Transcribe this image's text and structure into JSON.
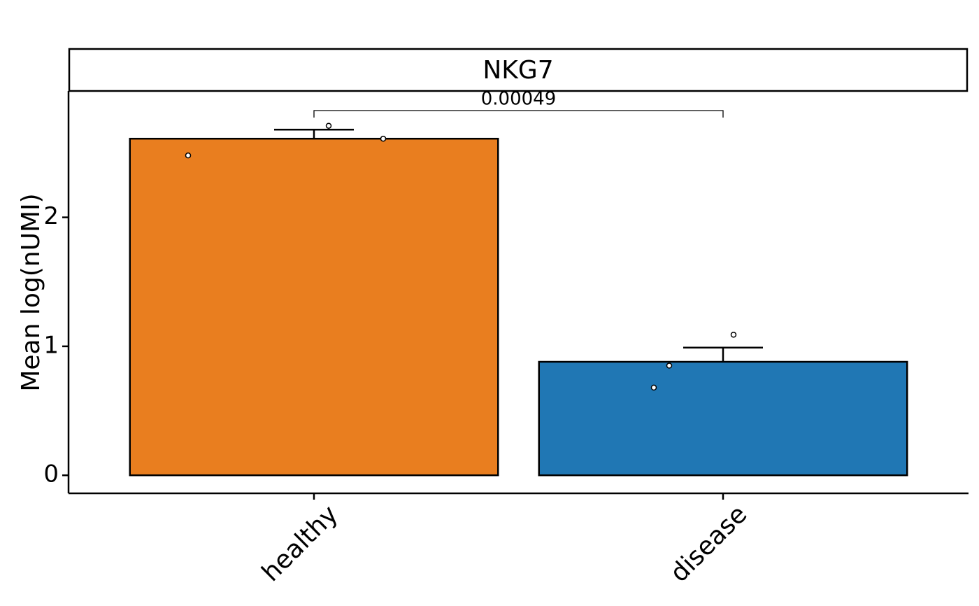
{
  "chart_data": {
    "type": "bar",
    "strip_title": "NKG7",
    "y_label": "Mean log(nUMI)",
    "categories": [
      "healthy",
      "disease"
    ],
    "values": [
      2.61,
      0.88
    ],
    "colors": [
      "#e97e1f",
      "#2077b4"
    ],
    "error": [
      0.07,
      0.11
    ],
    "points": [
      [
        2.48,
        2.71,
        2.61
      ],
      [
        0.68,
        0.85,
        1.09
      ]
    ],
    "annotation": "0.00049",
    "ylim": [
      -0.14,
      2.98
    ],
    "yticks": [
      0,
      1,
      2
    ],
    "grid": false
  }
}
